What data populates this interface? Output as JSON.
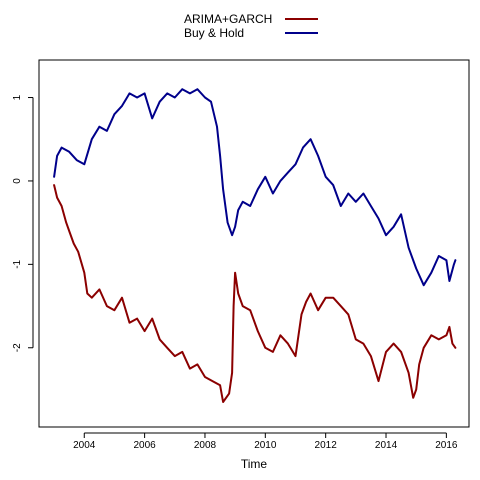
{
  "chart_data": {
    "type": "line",
    "title": "",
    "xlabel": "Time",
    "ylabel": "",
    "xlim": [
      2002.5,
      2016.75
    ],
    "ylim": [
      -2.95,
      1.45
    ],
    "x_ticks": [
      2004,
      2006,
      2008,
      2010,
      2012,
      2014,
      2016
    ],
    "x_tick_labels": [
      "2004",
      "2006",
      "2008",
      "2010",
      "2012",
      "2014",
      "2016"
    ],
    "y_ticks": [
      -2,
      -1,
      0,
      1
    ],
    "y_tick_labels": [
      "-2",
      "-1",
      "0",
      "1"
    ],
    "grid": false,
    "legend_position": "top-center",
    "series": [
      {
        "name": "ARIMA+GARCH",
        "color": "#8b0000",
        "x": [
          2003.0,
          2003.1,
          2003.25,
          2003.4,
          2003.5,
          2003.65,
          2003.8,
          2004.0,
          2004.1,
          2004.25,
          2004.5,
          2004.75,
          2005.0,
          2005.25,
          2005.5,
          2005.75,
          2006.0,
          2006.25,
          2006.5,
          2006.75,
          2007.0,
          2007.25,
          2007.5,
          2007.75,
          2008.0,
          2008.25,
          2008.5,
          2008.6,
          2008.8,
          2008.9,
          2008.95,
          2009.0,
          2009.1,
          2009.25,
          2009.5,
          2009.75,
          2010.0,
          2010.25,
          2010.5,
          2010.75,
          2011.0,
          2011.2,
          2011.35,
          2011.5,
          2011.75,
          2012.0,
          2012.25,
          2012.5,
          2012.75,
          2013.0,
          2013.25,
          2013.5,
          2013.75,
          2014.0,
          2014.25,
          2014.5,
          2014.75,
          2014.9,
          2015.0,
          2015.1,
          2015.25,
          2015.5,
          2015.75,
          2016.0,
          2016.1,
          2016.2,
          2016.3
        ],
        "values": [
          -0.05,
          -0.2,
          -0.3,
          -0.5,
          -0.6,
          -0.75,
          -0.85,
          -1.1,
          -1.35,
          -1.4,
          -1.3,
          -1.5,
          -1.55,
          -1.4,
          -1.7,
          -1.65,
          -1.8,
          -1.65,
          -1.9,
          -2.0,
          -2.1,
          -2.05,
          -2.25,
          -2.2,
          -2.35,
          -2.4,
          -2.45,
          -2.65,
          -2.55,
          -2.3,
          -1.5,
          -1.1,
          -1.35,
          -1.5,
          -1.55,
          -1.8,
          -2.0,
          -2.05,
          -1.85,
          -1.95,
          -2.1,
          -1.6,
          -1.45,
          -1.35,
          -1.55,
          -1.4,
          -1.4,
          -1.5,
          -1.6,
          -1.9,
          -1.95,
          -2.1,
          -2.4,
          -2.05,
          -1.95,
          -2.05,
          -2.3,
          -2.6,
          -2.5,
          -2.2,
          -2.0,
          -1.85,
          -1.9,
          -1.85,
          -1.75,
          -1.95,
          -2.0
        ]
      },
      {
        "name": "Buy & Hold",
        "color": "#00008b",
        "x": [
          2003.0,
          2003.1,
          2003.25,
          2003.5,
          2003.75,
          2004.0,
          2004.25,
          2004.5,
          2004.75,
          2005.0,
          2005.25,
          2005.5,
          2005.75,
          2006.0,
          2006.25,
          2006.5,
          2006.75,
          2007.0,
          2007.25,
          2007.5,
          2007.75,
          2008.0,
          2008.2,
          2008.4,
          2008.5,
          2008.6,
          2008.75,
          2008.9,
          2009.0,
          2009.1,
          2009.25,
          2009.5,
          2009.75,
          2010.0,
          2010.25,
          2010.5,
          2010.75,
          2011.0,
          2011.25,
          2011.5,
          2011.75,
          2012.0,
          2012.25,
          2012.5,
          2012.75,
          2013.0,
          2013.25,
          2013.5,
          2013.75,
          2014.0,
          2014.25,
          2014.5,
          2014.75,
          2015.0,
          2015.25,
          2015.5,
          2015.75,
          2016.0,
          2016.1,
          2016.25,
          2016.3
        ],
        "values": [
          0.05,
          0.3,
          0.4,
          0.35,
          0.25,
          0.2,
          0.5,
          0.65,
          0.6,
          0.8,
          0.9,
          1.05,
          1.0,
          1.05,
          0.75,
          0.95,
          1.05,
          1.0,
          1.1,
          1.05,
          1.1,
          1.0,
          0.95,
          0.65,
          0.3,
          -0.1,
          -0.5,
          -0.65,
          -0.55,
          -0.35,
          -0.25,
          -0.3,
          -0.1,
          0.05,
          -0.15,
          0.0,
          0.1,
          0.2,
          0.4,
          0.5,
          0.3,
          0.05,
          -0.05,
          -0.3,
          -0.15,
          -0.25,
          -0.15,
          -0.3,
          -0.45,
          -0.65,
          -0.55,
          -0.4,
          -0.8,
          -1.05,
          -1.25,
          -1.1,
          -0.9,
          -0.95,
          -1.2,
          -1.0,
          -0.95
        ]
      }
    ]
  }
}
